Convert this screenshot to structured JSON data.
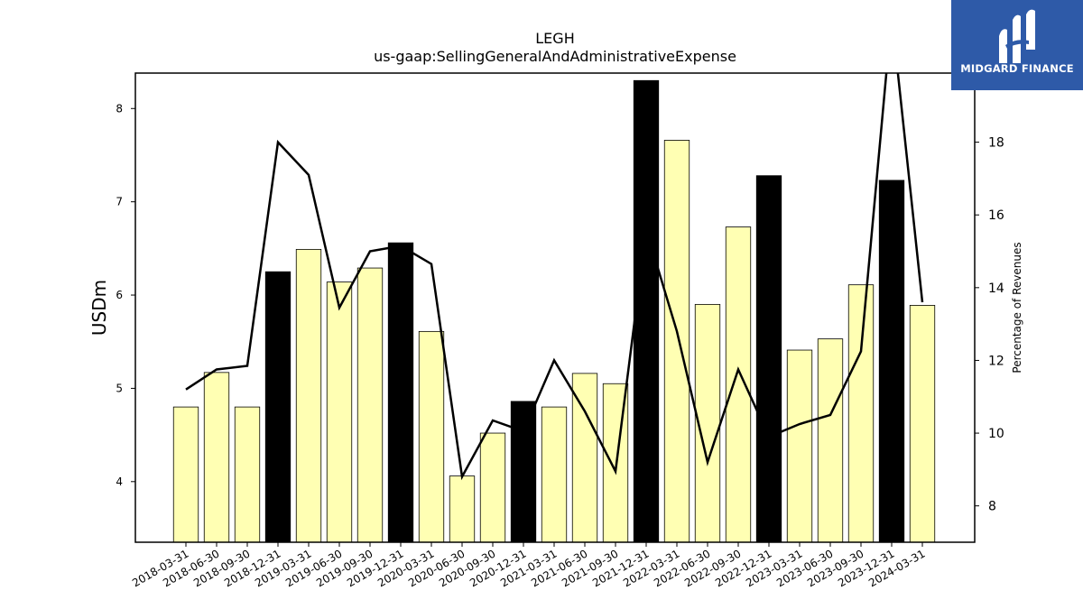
{
  "chart_data": {
    "type": "bar",
    "title": "LEGH",
    "subtitle": "us-gaap:SellingGeneralAndAdministrativeExpense",
    "ylabel": "USDm",
    "y2label": "Percentage of Revenues",
    "ylim": [
      3.35,
      8.38
    ],
    "y2lim": [
      7.0,
      19.9
    ],
    "yticks": [
      4,
      5,
      6,
      7,
      8
    ],
    "y2ticks": [
      8,
      10,
      12,
      14,
      16,
      18
    ],
    "grid": false,
    "categories": [
      "2018-03-31",
      "2018-06-30",
      "2018-09-30",
      "2018-12-31",
      "2019-03-31",
      "2019-06-30",
      "2019-09-30",
      "2019-12-31",
      "2020-03-31",
      "2020-06-30",
      "2020-09-30",
      "2020-12-31",
      "2021-03-31",
      "2021-06-30",
      "2021-09-30",
      "2021-12-31",
      "2022-03-31",
      "2022-06-30",
      "2022-09-30",
      "2022-12-31",
      "2023-03-31",
      "2023-06-30",
      "2023-09-30",
      "2023-12-31",
      "2024-03-31"
    ],
    "series": [
      {
        "kind": "bar",
        "values": [
          4.8,
          5.17,
          4.8,
          6.25,
          6.49,
          6.14,
          6.29,
          6.56,
          5.61,
          4.06,
          4.52,
          4.86,
          4.8,
          5.16,
          5.05,
          8.3,
          7.66,
          5.9,
          6.73,
          7.28,
          5.41,
          5.53,
          6.11,
          7.23,
          5.89
        ],
        "highlight": [
          false,
          false,
          false,
          true,
          false,
          false,
          false,
          true,
          false,
          false,
          false,
          true,
          false,
          false,
          false,
          true,
          false,
          false,
          false,
          true,
          false,
          false,
          false,
          true,
          false
        ],
        "color": "#ffffb3",
        "highlight_color": "#000000"
      },
      {
        "kind": "line",
        "axis": "right",
        "values": [
          11.2,
          11.75,
          11.85,
          18.0,
          17.1,
          13.45,
          15.0,
          15.15,
          14.65,
          8.8,
          10.35,
          10.05,
          12.0,
          10.6,
          8.95,
          15.6,
          12.8,
          9.2,
          11.75,
          9.9,
          10.25,
          10.5,
          12.25,
          21.5,
          13.6
        ],
        "color": "#000000"
      }
    ]
  },
  "logo": {
    "text": "MIDGARD FINANCE"
  }
}
